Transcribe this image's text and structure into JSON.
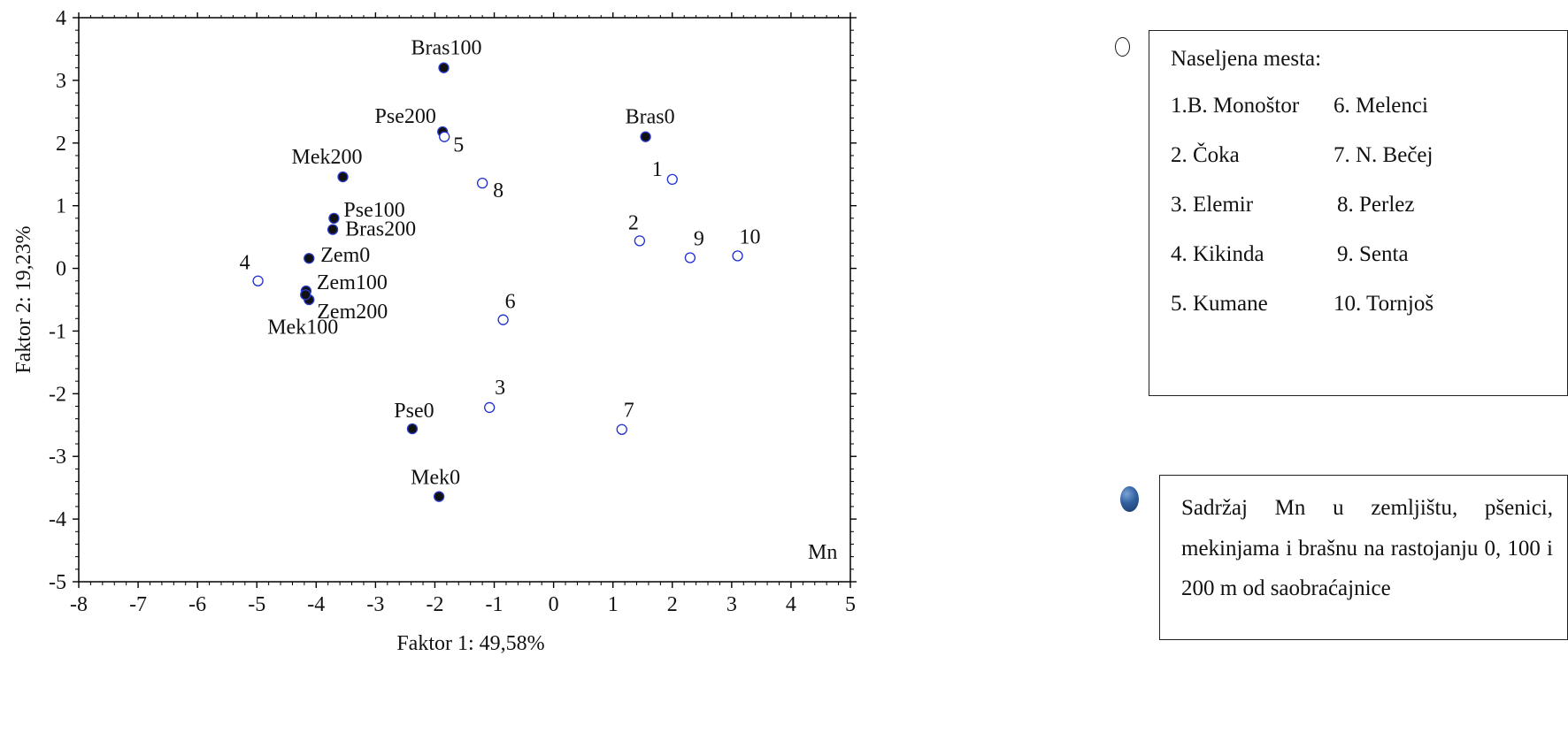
{
  "chart_data": {
    "type": "scatter",
    "title": "",
    "annotation": "Mn",
    "xlabel": "Faktor 1: 49,58%",
    "ylabel": "Faktor 2: 19,23%",
    "xlim": [
      -8,
      5
    ],
    "ylim": [
      -5,
      4
    ],
    "xticks": [
      -8,
      -7,
      -6,
      -5,
      -4,
      -3,
      -2,
      -1,
      0,
      1,
      2,
      3,
      4,
      5
    ],
    "yticks": [
      -5,
      -4,
      -3,
      -2,
      -1,
      0,
      1,
      2,
      3,
      4
    ],
    "series": [
      {
        "marker": "filled",
        "points": [
          {
            "label": "Bras100",
            "x": -1.85,
            "y": 3.2
          },
          {
            "label": "Pse200",
            "x": -1.87,
            "y": 2.18
          },
          {
            "label": "Bras0",
            "x": 1.55,
            "y": 2.1
          },
          {
            "label": "Mek200",
            "x": -3.55,
            "y": 1.46
          },
          {
            "label": "Pse100",
            "x": -3.7,
            "y": 0.8
          },
          {
            "label": "Bras200",
            "x": -3.72,
            "y": 0.62
          },
          {
            "label": "Zem0",
            "x": -4.12,
            "y": 0.16
          },
          {
            "label": "Zem100",
            "x": -4.17,
            "y": -0.36
          },
          {
            "label": "Zem200",
            "x": -4.12,
            "y": -0.5
          },
          {
            "label": "Mek100",
            "x": -4.18,
            "y": -0.42
          },
          {
            "label": "Pse0",
            "x": -2.38,
            "y": -2.56
          },
          {
            "label": "Mek0",
            "x": -1.93,
            "y": -3.64
          }
        ]
      },
      {
        "marker": "open",
        "points": [
          {
            "label": "1",
            "x": 2.0,
            "y": 1.42
          },
          {
            "label": "2",
            "x": 1.45,
            "y": 0.44
          },
          {
            "label": "3",
            "x": -1.08,
            "y": -2.22
          },
          {
            "label": "4",
            "x": -4.98,
            "y": -0.2
          },
          {
            "label": "5",
            "x": -1.84,
            "y": 2.1
          },
          {
            "label": "6",
            "x": -0.85,
            "y": -0.82
          },
          {
            "label": "7",
            "x": 1.15,
            "y": -2.57
          },
          {
            "label": "8",
            "x": -1.2,
            "y": 1.36
          },
          {
            "label": "9",
            "x": 2.3,
            "y": 0.17
          },
          {
            "label": "10",
            "x": 3.1,
            "y": 0.2
          }
        ]
      }
    ]
  },
  "legend": {
    "places_title": "Naseljena mesta:",
    "places": [
      "1.B. Monoštor",
      "6. Melenci",
      "2. Čoka",
      "7. N. Bečej",
      "3. Elemir",
      "8. Perlez",
      "4. Kikinda",
      "9. Senta",
      "5. Kumane",
      "10. Tornjoš"
    ],
    "mn_text": "Sadržaj Mn u zemljištu, pšenici, mekinjama i brašnu na rastojanju 0, 100 i 200 m od saobraćajnice"
  },
  "colors": {
    "filled_marker": "#111111",
    "open_marker": "#1f2fd0",
    "axis": "#000000"
  }
}
